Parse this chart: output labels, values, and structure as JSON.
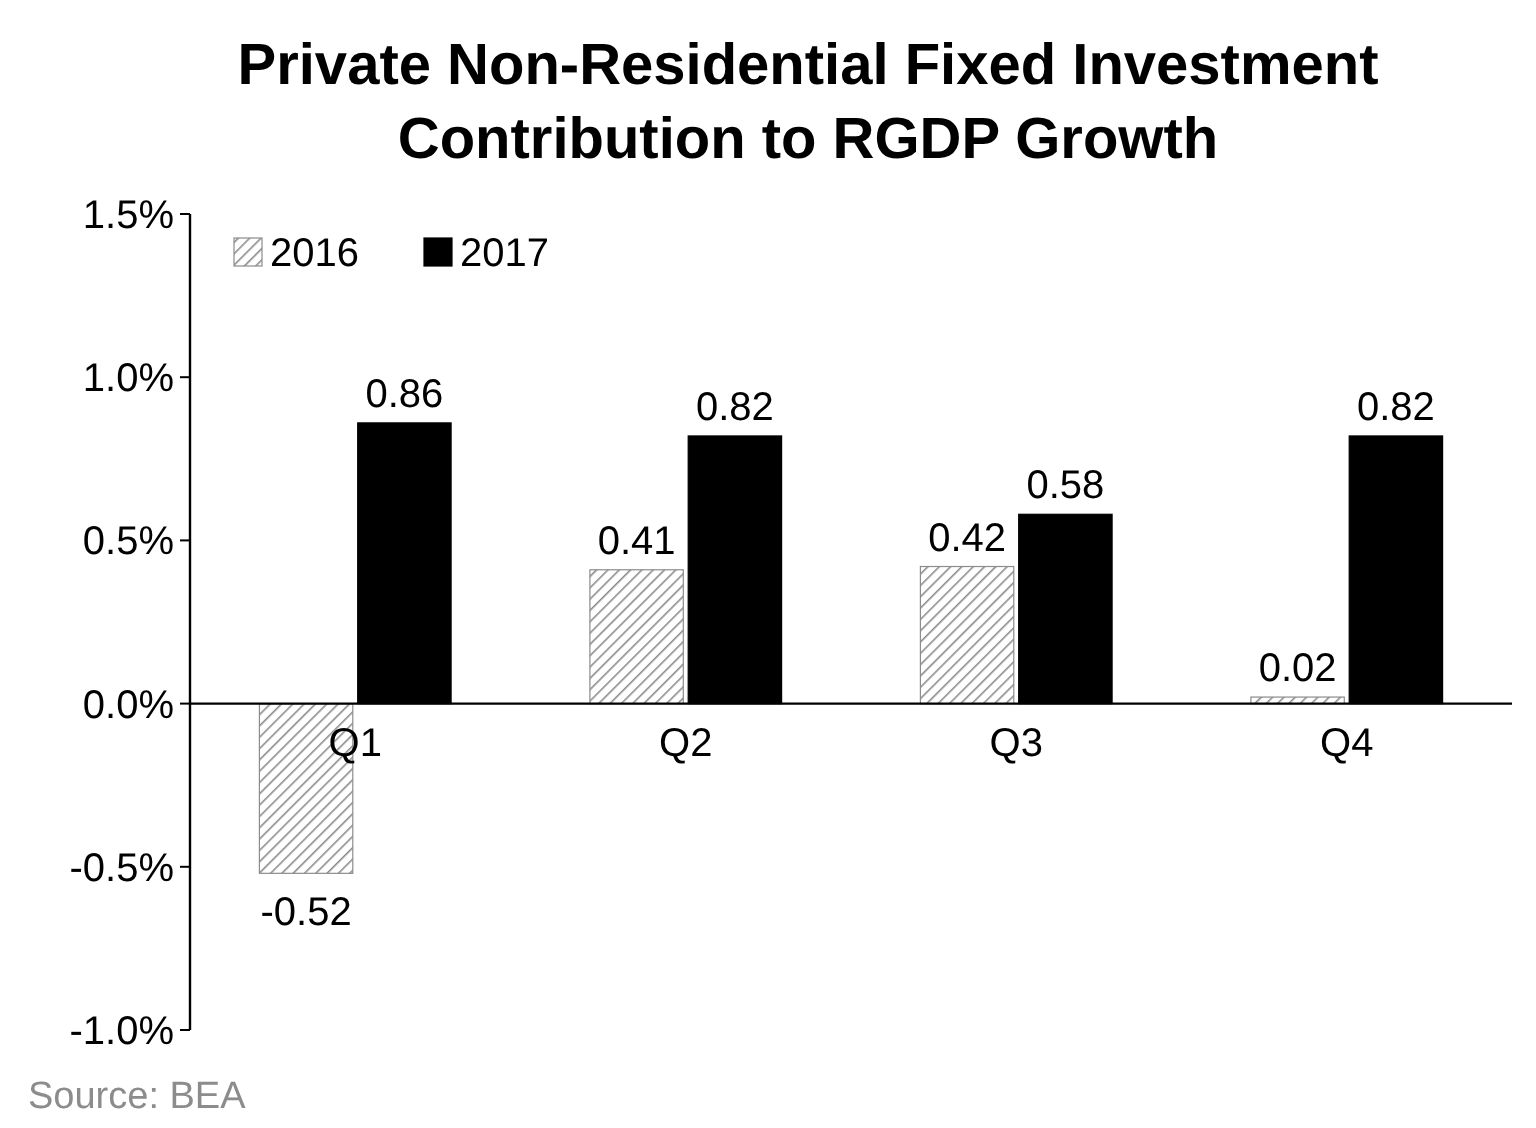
{
  "chart_data": {
    "type": "bar",
    "title": "Private Non-Residential Fixed Investment\nContribution to RGDP Growth",
    "categories": [
      "Q1",
      "Q2",
      "Q3",
      "Q4"
    ],
    "series": [
      {
        "name": "2016",
        "color": "#8c8c8c",
        "values": [
          -0.52,
          0.41,
          0.42,
          0.02
        ]
      },
      {
        "name": "2017",
        "color": "#000000",
        "values": [
          0.86,
          0.82,
          0.58,
          0.82
        ]
      }
    ],
    "ylim": [
      -1.0,
      1.5
    ],
    "yticks": [
      {
        "value": -1.0,
        "label": "-1.0%"
      },
      {
        "value": -0.5,
        "label": "-0.5%"
      },
      {
        "value": 0,
        "label": "0.0%"
      },
      {
        "value": 0.5,
        "label": "0.5%"
      },
      {
        "value": 1.0,
        "label": "1.0%"
      },
      {
        "value": 1.5,
        "label": "1.5%"
      }
    ],
    "data_labels": true,
    "legend": "top left",
    "grid": false,
    "annotations": [
      "Source: BEA"
    ]
  }
}
